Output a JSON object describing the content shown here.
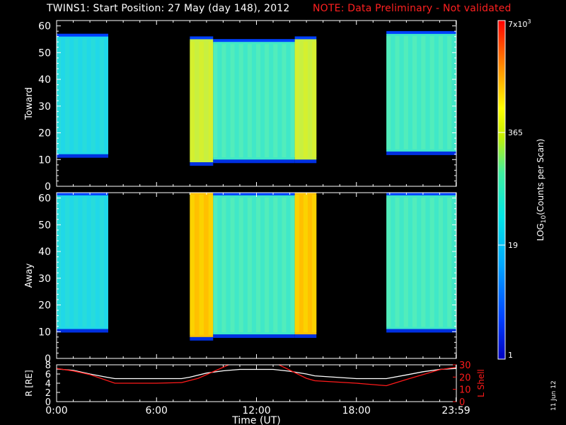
{
  "header": {
    "title": "TWINS1: Start Position: 27 May (day 148), 2012",
    "note": "NOTE: Data Preliminary - Not validated"
  },
  "colorbar": {
    "label": "LOG10(Counts per Scan)",
    "ticks": [
      "7x10^3",
      "365",
      "19",
      "1"
    ],
    "top_label": "7x10",
    "top_label_exp": "3"
  },
  "date_stamp": "11 Jun 12",
  "chart_data": [
    {
      "type": "heatmap",
      "panel": "top",
      "ylabel": "Toward",
      "ylim": [
        0,
        62
      ],
      "yticks": [
        0,
        10,
        20,
        30,
        40,
        50,
        60
      ],
      "xlim": [
        0,
        24
      ],
      "segments": [
        {
          "start_hr": 0.0,
          "end_hr": 3.1,
          "ymin": 12,
          "ymax": 56,
          "level": "cyan"
        },
        {
          "start_hr": 8.0,
          "end_hr": 9.4,
          "ymin": 9,
          "ymax": 55,
          "level": "yellow-green"
        },
        {
          "start_hr": 9.4,
          "end_hr": 14.3,
          "ymin": 10,
          "ymax": 54,
          "level": "cyan-green"
        },
        {
          "start_hr": 14.3,
          "end_hr": 15.6,
          "ymin": 10,
          "ymax": 55,
          "level": "yellow-green"
        },
        {
          "start_hr": 19.8,
          "end_hr": 23.98,
          "ymin": 13,
          "ymax": 57,
          "level": "cyan-green"
        }
      ]
    },
    {
      "type": "heatmap",
      "panel": "middle",
      "ylabel": "Away",
      "ylim": [
        0,
        62
      ],
      "yticks": [
        0,
        10,
        20,
        30,
        40,
        50,
        60
      ],
      "xlim": [
        0,
        24
      ],
      "segments": [
        {
          "start_hr": 0.0,
          "end_hr": 3.1,
          "ymin": 11,
          "ymax": 61,
          "level": "cyan"
        },
        {
          "start_hr": 8.0,
          "end_hr": 9.4,
          "ymin": 8,
          "ymax": 62,
          "level": "orange-yellow"
        },
        {
          "start_hr": 9.4,
          "end_hr": 14.3,
          "ymin": 9,
          "ymax": 61,
          "level": "cyan-green"
        },
        {
          "start_hr": 14.3,
          "end_hr": 15.6,
          "ymin": 9,
          "ymax": 62,
          "level": "orange-yellow"
        },
        {
          "start_hr": 19.8,
          "end_hr": 23.98,
          "ymin": 11,
          "ymax": 61,
          "level": "cyan-green"
        }
      ]
    },
    {
      "type": "line",
      "panel": "bottom",
      "ylabel_left": "R [RE]",
      "ylabel_right": "L Shell",
      "xlabel": "Time (UT)",
      "xtick_labels": [
        "0:00",
        "6:00",
        "12:00",
        "18:00",
        "23:59"
      ],
      "xticks_hr": [
        0,
        6,
        12,
        18,
        23.98
      ],
      "ylim_left": [
        0,
        8
      ],
      "yticks_left": [
        0,
        2,
        4,
        6,
        8
      ],
      "ylim_right": [
        0,
        30
      ],
      "yticks_right": [
        0,
        10,
        20,
        30
      ],
      "series": [
        {
          "axis": "left",
          "color": "#ffffff",
          "x": [
            0,
            1,
            2,
            3,
            3.5,
            6,
            7.5,
            8,
            9,
            10,
            11,
            12,
            13,
            14,
            15,
            15.5,
            18,
            19.8,
            21,
            22,
            23,
            23.98
          ],
          "y": [
            7.1,
            6.8,
            6.0,
            5.3,
            5.0,
            5.0,
            5.0,
            5.3,
            6.2,
            6.7,
            7.0,
            7.0,
            7.0,
            6.6,
            6.0,
            5.6,
            5.0,
            5.0,
            5.8,
            6.5,
            7.0,
            7.2
          ]
        },
        {
          "axis": "right",
          "color": "#ff1a1a",
          "x": [
            0,
            1,
            2,
            3.5,
            6,
            7.5,
            8.5,
            10.5,
            13.2,
            15,
            15.5,
            18,
            19.8,
            21,
            23,
            23.98
          ],
          "y": [
            27,
            25,
            22,
            15,
            15,
            15.5,
            19,
            31,
            31,
            19,
            17,
            15,
            13,
            18,
            26,
            28
          ]
        }
      ]
    }
  ]
}
